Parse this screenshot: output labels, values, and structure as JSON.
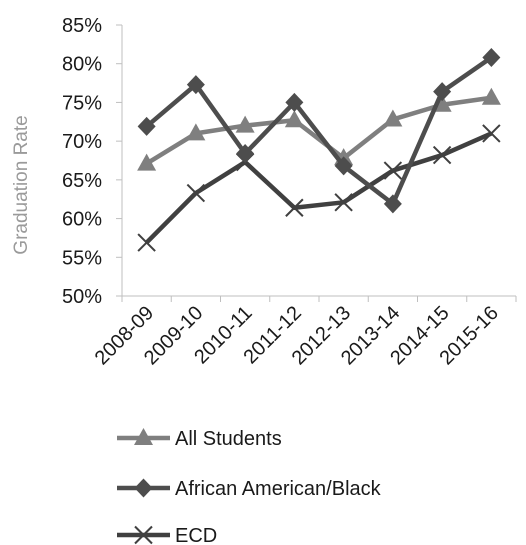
{
  "chart_data": {
    "type": "line",
    "categories": [
      "2008-09",
      "2009-10",
      "2010-11",
      "2011-12",
      "2012-13",
      "2013-14",
      "2014-15",
      "2015-16"
    ],
    "ylabel": "Graduation Rate",
    "xlabel": "",
    "ylim": [
      50,
      85
    ],
    "yticks": [
      "50%",
      "55%",
      "60%",
      "65%",
      "70%",
      "75%",
      "80%",
      "85%"
    ],
    "grid": false,
    "legend": "bottom",
    "series": [
      {
        "name": "All Students",
        "color": "#7f7f7f",
        "marker": "triangle",
        "values": [
          67.1,
          71.0,
          72.0,
          72.7,
          67.8,
          72.8,
          74.7,
          75.6
        ]
      },
      {
        "name": "African American/Black",
        "color": "#4d4d4d",
        "marker": "diamond",
        "values": [
          71.9,
          77.3,
          68.4,
          75.0,
          66.8,
          61.9,
          76.4,
          80.8
        ]
      },
      {
        "name": "ECD",
        "color": "#404040",
        "marker": "x",
        "values": [
          56.9,
          63.3,
          67.3,
          61.4,
          62.1,
          66.2,
          68.2,
          71.0
        ]
      }
    ]
  }
}
